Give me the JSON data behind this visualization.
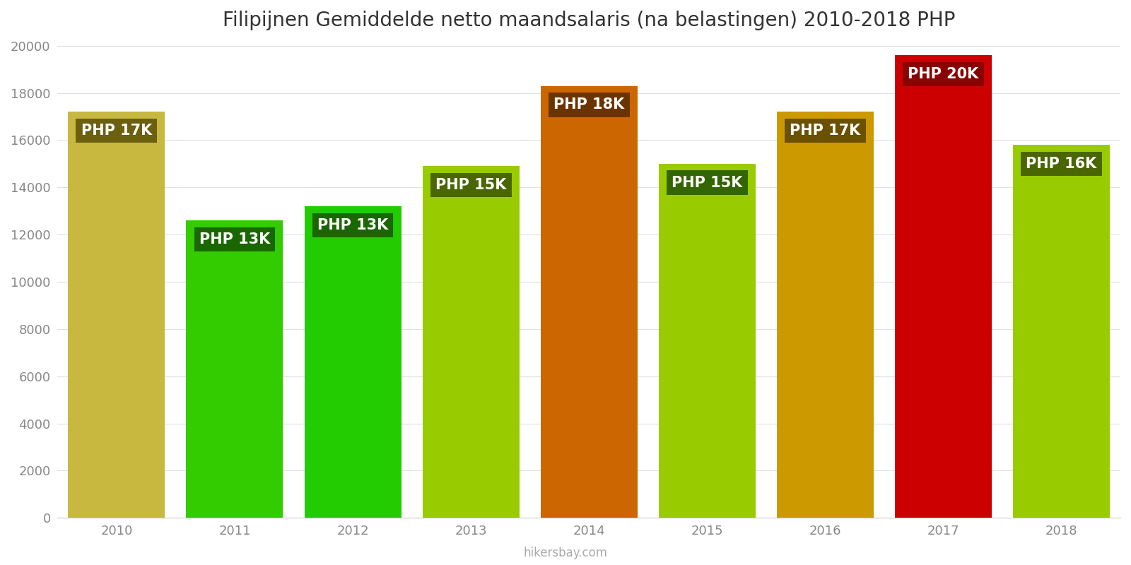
{
  "title": "Filipijnen Gemiddelde netto maandsalaris (na belastingen) 2010-2018 PHP",
  "years": [
    2010,
    2011,
    2012,
    2013,
    2014,
    2015,
    2016,
    2017,
    2018
  ],
  "values": [
    17200,
    12600,
    13200,
    14900,
    18300,
    15000,
    17200,
    19600,
    15800
  ],
  "bar_colors": [
    "#c8b840",
    "#33cc00",
    "#22cc00",
    "#99cc00",
    "#cc6600",
    "#99cc00",
    "#cc9900",
    "#cc0000",
    "#99cc00"
  ],
  "label_bg_colors": [
    "#6b5f10",
    "#1a6600",
    "#1a6600",
    "#4a6600",
    "#6b3300",
    "#336600",
    "#6b5000",
    "#8b0000",
    "#4a6600"
  ],
  "labels": [
    "PHP 17K",
    "PHP 13K",
    "PHP 13K",
    "PHP 15K",
    "PHP 18K",
    "PHP 15K",
    "PHP 17K",
    "PHP 20K",
    "PHP 16K"
  ],
  "label_text_color": "#ffffff",
  "ylim": [
    0,
    20000
  ],
  "yticks": [
    0,
    2000,
    4000,
    6000,
    8000,
    10000,
    12000,
    14000,
    16000,
    18000,
    20000
  ],
  "background_color": "#ffffff",
  "grid_color": "#e0e0e0",
  "watermark": "hikersbay.com",
  "title_fontsize": 20,
  "label_fontsize": 15,
  "tick_fontsize": 13
}
